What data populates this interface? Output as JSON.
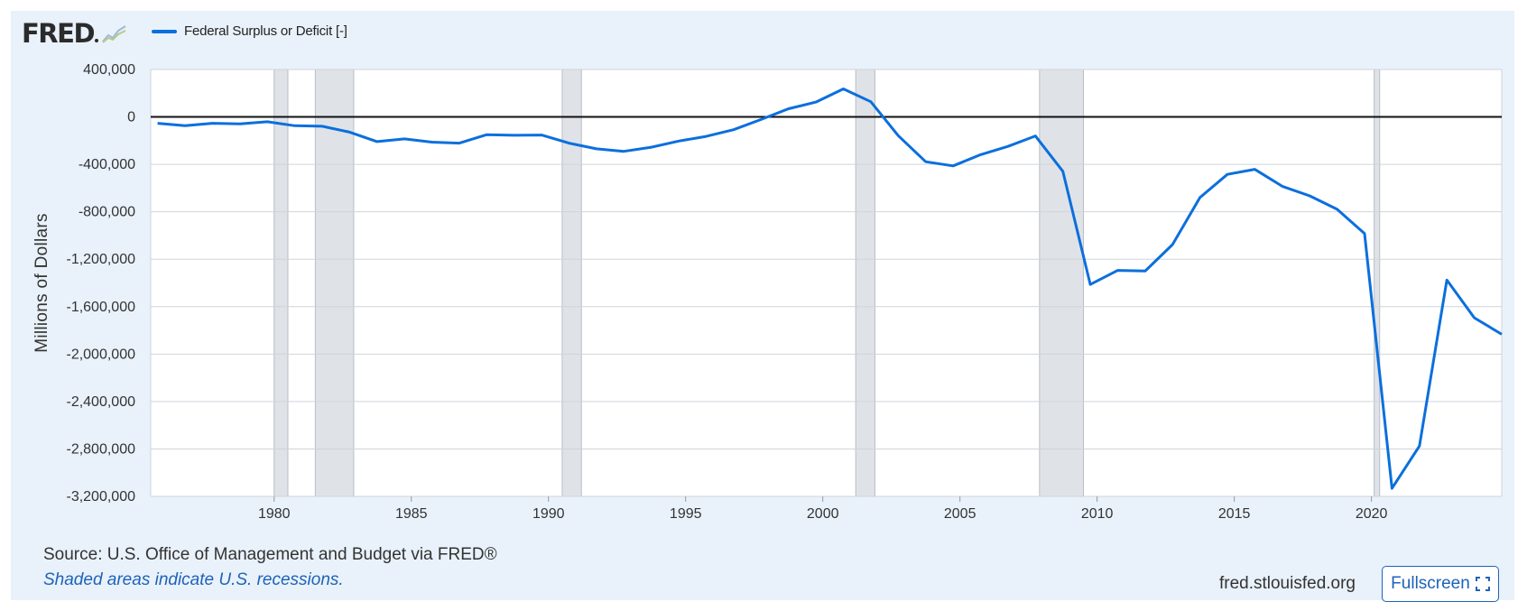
{
  "header": {
    "logo_text": "FRED",
    "legend_label": "Federal Surplus or Deficit [-]"
  },
  "footer": {
    "source": "Source: U.S. Office of Management and Budget via FRED®",
    "note": "Shaded areas indicate U.S. recessions.",
    "site": "fred.stlouisfed.org",
    "fullscreen_label": "Fullscreen"
  },
  "icons": {
    "logo_chart": "line-chart-icon",
    "fullscreen": "expand-icon"
  },
  "colors": {
    "series": "#0b6fdd",
    "recession": "#dfe3e8",
    "background": "#e9f1fa",
    "link": "#1d63b8"
  },
  "chart_data": {
    "type": "line",
    "ylabel": "Millions of Dollars",
    "xlim": [
      1975.5,
      2024.75
    ],
    "ylim": [
      -3200000,
      400000
    ],
    "x_ticks": [
      1980,
      1985,
      1990,
      1995,
      2000,
      2005,
      2010,
      2015,
      2020
    ],
    "y_ticks": [
      400000,
      0,
      -400000,
      -800000,
      -1200000,
      -1600000,
      -2000000,
      -2400000,
      -2800000,
      -3200000
    ],
    "y_tick_labels": [
      "400,000",
      "0",
      "-400,000",
      "-800,000",
      "-1,200,000",
      "-1,600,000",
      "-2,000,000",
      "-2,400,000",
      "-2,800,000",
      "-3,200,000"
    ],
    "grid": true,
    "zero_line": true,
    "recessions": [
      [
        1980.0,
        1980.5
      ],
      [
        1981.5,
        1982.9
      ],
      [
        1990.5,
        1991.2
      ],
      [
        2001.2,
        2001.9
      ],
      [
        2007.9,
        2009.5
      ],
      [
        2020.1,
        2020.3
      ]
    ],
    "series": [
      {
        "x": [
          1975.75,
          1976.75,
          1977.75,
          1978.75,
          1979.75,
          1980.75,
          1981.75,
          1982.75,
          1983.75,
          1984.75,
          1985.75,
          1986.75,
          1987.75,
          1988.75,
          1989.75,
          1990.75,
          1991.75,
          1992.75,
          1993.75,
          1994.75,
          1995.75,
          1996.75,
          1997.75,
          1998.75,
          1999.75,
          2000.75,
          2001.75,
          2002.75,
          2003.75,
          2004.75,
          2005.75,
          2006.75,
          2007.75,
          2008.75,
          2009.75,
          2010.75,
          2011.75,
          2012.75,
          2013.75,
          2014.75,
          2015.75,
          2016.75,
          2017.75,
          2018.75,
          2019.75,
          2020.75,
          2021.75,
          2022.75,
          2023.75,
          2024.75
        ],
        "values": [
          -53242,
          -73732,
          -53659,
          -59185,
          -40726,
          -73830,
          -78968,
          -127977,
          -207802,
          -185367,
          -212308,
          -221227,
          -149730,
          -155178,
          -152639,
          -221036,
          -269238,
          -290321,
          -255051,
          -203186,
          -163952,
          -107431,
          -21884,
          69270,
          125610,
          236241,
          128236,
          -157758,
          -377585,
          -412727,
          -318346,
          -248181,
          -160701,
          -458553,
          -1412688,
          -1294373,
          -1299593,
          -1076573,
          -679775,
          -484602,
          -442004,
          -584651,
          -665446,
          -779137,
          -983591,
          -3131917,
          -2775297,
          -1375906,
          -1694053,
          -1832823
        ]
      }
    ]
  }
}
